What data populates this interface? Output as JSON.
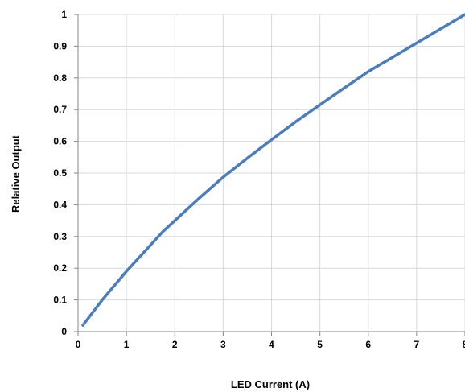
{
  "chart_data": {
    "type": "line",
    "title": "",
    "xlabel": "LED Current (A)",
    "ylabel": "Relative Output",
    "xlim": [
      0,
      8
    ],
    "ylim": [
      0,
      1
    ],
    "x_ticks": [
      "0",
      "1",
      "2",
      "3",
      "4",
      "5",
      "6",
      "7",
      "8"
    ],
    "y_ticks": [
      "0",
      "0.1",
      "0.2",
      "0.3",
      "0.4",
      "0.5",
      "0.6",
      "0.7",
      "0.8",
      "0.9",
      "1"
    ],
    "grid": true,
    "legend": "none",
    "series": [
      {
        "color": "#4a7ebb",
        "x": [
          0.1,
          0.5,
          1.0,
          1.3,
          1.75,
          2.0,
          2.5,
          3.0,
          3.5,
          4.0,
          4.5,
          5.0,
          5.5,
          6.0,
          6.5,
          7.0,
          7.5,
          8.0
        ],
        "y": [
          0.02,
          0.1,
          0.19,
          0.24,
          0.315,
          0.35,
          0.42,
          0.487,
          0.547,
          0.605,
          0.662,
          0.715,
          0.768,
          0.82,
          0.865,
          0.91,
          0.955,
          1.0
        ]
      }
    ]
  }
}
